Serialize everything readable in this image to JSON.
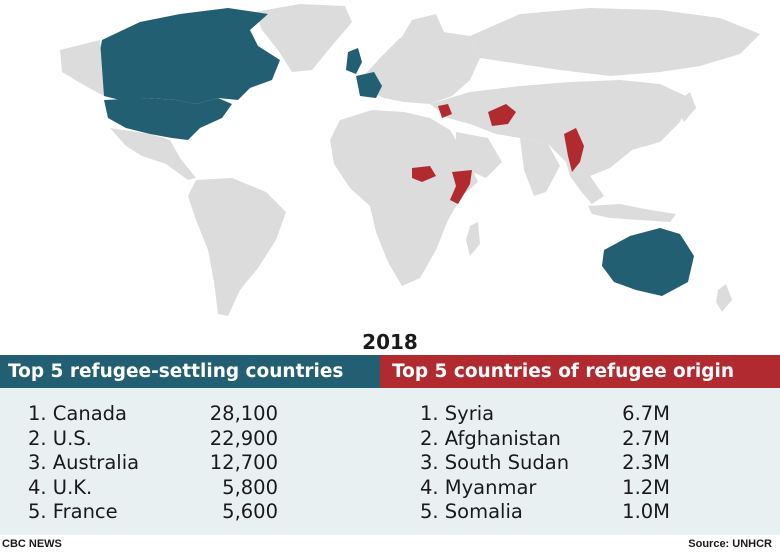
{
  "year": "2018",
  "colors": {
    "settling": "#235f73",
    "origin": "#b02a30",
    "land": "#dcdcdc",
    "panel": "#e8f0f2"
  },
  "settling": {
    "header": "Top 5 refugee-settling countries",
    "items": [
      {
        "rank": "1. Canada",
        "value": "28,100"
      },
      {
        "rank": "2. U.S.",
        "value": "22,900"
      },
      {
        "rank": "3. Australia",
        "value": "12,700"
      },
      {
        "rank": "4. U.K.",
        "value": "5,800"
      },
      {
        "rank": "5. France",
        "value": "5,600"
      }
    ]
  },
  "origin": {
    "header": "Top 5 countries of refugee origin",
    "items": [
      {
        "rank": "1. Syria",
        "value": "6.7M"
      },
      {
        "rank": "2. Afghanistan",
        "value": "2.7M"
      },
      {
        "rank": "3. South Sudan",
        "value": "2.3M"
      },
      {
        "rank": "4. Myanmar",
        "value": "1.2M"
      },
      {
        "rank": "5. Somalia",
        "value": "1.0M"
      }
    ]
  },
  "footer": {
    "credit": "CBC NEWS",
    "source": "Source: UNHCR"
  }
}
